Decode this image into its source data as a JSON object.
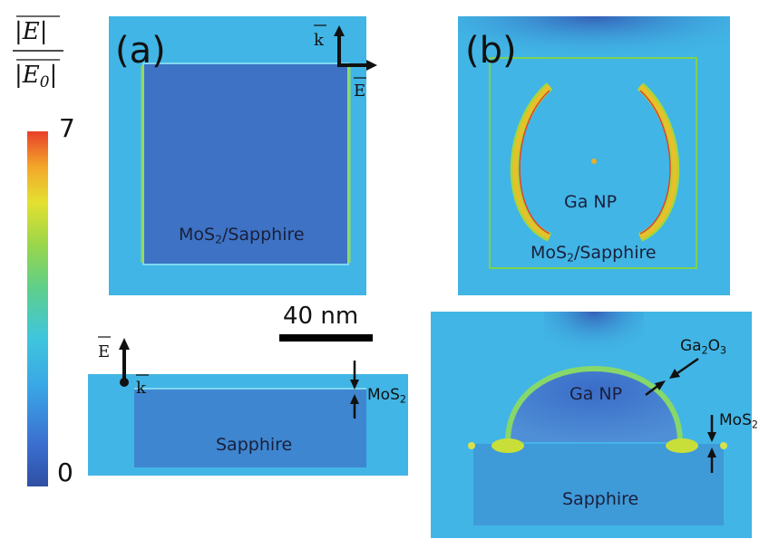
{
  "colorbar": {
    "numerator": "|E|",
    "numerator_var": "E",
    "denominator_var": "E",
    "denominator_sub": "0",
    "max_label": "7",
    "min_label": "0",
    "max_value": 7,
    "min_value": 0,
    "colors": [
      "#2f4fa3",
      "#3b6fd0",
      "#3aa6e6",
      "#3fc6dc",
      "#5fcf8a",
      "#9ad64a",
      "#e4e030",
      "#f3a72a",
      "#e8402a"
    ]
  },
  "panel_a": {
    "letter": "(a)",
    "top_region_label_pre": "MoS",
    "top_region_label_sub": "2",
    "top_region_label_post": "/Sapphire",
    "k_label": "k",
    "e_label": "E",
    "bottom_region_label": "Sapphire",
    "bottom_k_label": "k",
    "bottom_e_label": "E",
    "mos2_label_pre": "MoS",
    "mos2_label_sub": "2"
  },
  "panel_b": {
    "letter": "(b)",
    "np_label": "Ga NP",
    "region_label_pre": "MoS",
    "region_label_sub": "2",
    "region_label_post": "/Sapphire",
    "bottom_np_label": "Ga NP",
    "oxide_pre": "Ga",
    "oxide_sub1": "2",
    "oxide_mid": "O",
    "oxide_sub2": "3",
    "mos2_label_pre": "MoS",
    "mos2_label_sub": "2",
    "sapphire_label": "Sapphire"
  },
  "scale_bar": {
    "label": "40 nm"
  }
}
